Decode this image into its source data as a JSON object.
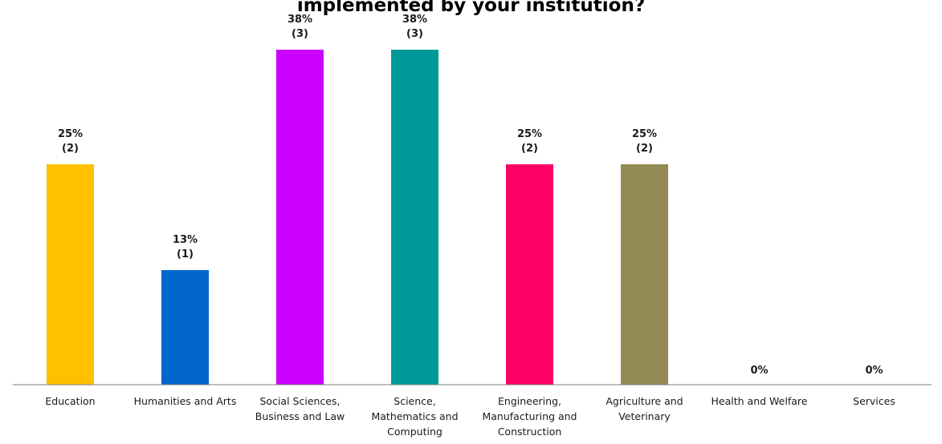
{
  "chart_data": {
    "type": "bar",
    "title": "implemented by your institution?",
    "categories": [
      "Education",
      "Humanities and Arts",
      "Social Sciences, Business and Law",
      "Science, Mathematics and Computing",
      "Engineering, Manufacturing and Construction",
      "Agriculture and Veterinary",
      "Health and Welfare",
      "Services"
    ],
    "category_label_lines": [
      [
        "Education"
      ],
      [
        "Humanities and Arts"
      ],
      [
        "Social Sciences,",
        "Business and Law"
      ],
      [
        "Science,",
        "Mathematics and",
        "Computing"
      ],
      [
        "Engineering,",
        "Manufacturing and",
        "Construction"
      ],
      [
        "Agriculture and",
        "Veterinary"
      ],
      [
        "Health and Welfare"
      ],
      [
        "Services"
      ]
    ],
    "values": [
      25,
      13,
      38,
      38,
      25,
      25,
      0,
      0
    ],
    "counts": [
      2,
      1,
      3,
      3,
      2,
      2,
      0,
      0
    ],
    "value_labels": [
      "25%",
      "13%",
      "38%",
      "38%",
      "25%",
      "25%",
      "0%",
      "0%"
    ],
    "count_labels": [
      "(2)",
      "(1)",
      "(3)",
      "(3)",
      "(2)",
      "(2)",
      "",
      ""
    ],
    "colors": [
      "#FFC000",
      "#0066CC",
      "#CC00FF",
      "#009999",
      "#FF0066",
      "#948A54",
      "#7F7F7F",
      "#7F7F7F"
    ],
    "xlabel": "",
    "ylabel": "",
    "ylim": [
      0,
      38
    ],
    "grid": false,
    "legend": "none"
  }
}
